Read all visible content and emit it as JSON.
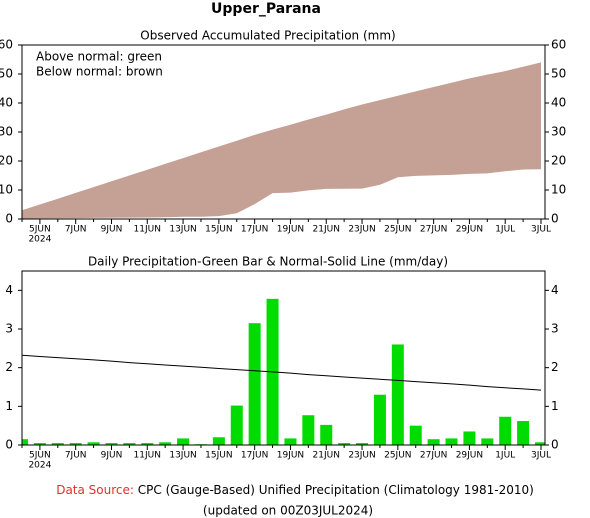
{
  "header": {
    "title": "Upper_Parana"
  },
  "chart_data": [
    {
      "type": "band",
      "title": "Observed Accumulated Precipitation (mm)",
      "annotations": [
        "Above normal: green",
        "Below normal: brown"
      ],
      "categories": [
        null,
        "5JUN",
        null,
        "7JUN",
        null,
        "9JUN",
        null,
        "11JUN",
        null,
        "13JUN",
        null,
        "15JUN",
        null,
        "17JUN",
        null,
        "19JUN",
        null,
        "21JUN",
        null,
        "23JUN",
        null,
        "25JUN",
        null,
        "27JUN",
        null,
        "29JUN",
        null,
        "1JUL",
        null,
        "3JUL"
      ],
      "year_label": "2024",
      "fill_color": "#c4a095",
      "series": [
        {
          "values": [
            3,
            5,
            7,
            9,
            11,
            13,
            15,
            17,
            19,
            21,
            23,
            25,
            27,
            29,
            30.8,
            32.5,
            34.3,
            36,
            37.8,
            39.5,
            41,
            42.5,
            44,
            45.5,
            47,
            48.5,
            49.8,
            51,
            52.5,
            54
          ]
        },
        {
          "values": [
            0.15,
            0.2,
            0.25,
            0.3,
            0.37,
            0.42,
            0.47,
            0.52,
            0.59,
            0.76,
            0.78,
            0.98,
            2.0,
            5.15,
            8.93,
            9.1,
            9.87,
            10.39,
            10.44,
            10.49,
            11.79,
            14.39,
            14.89,
            15.04,
            15.21,
            15.56,
            15.73,
            16.46,
            17.08,
            17.15
          ]
        }
      ],
      "ylim": [
        0,
        60
      ],
      "yticks": [
        0,
        10,
        20,
        30,
        40,
        50,
        60
      ]
    },
    {
      "type": "bar",
      "title": "Daily Precipitation-Green Bar & Normal-Solid Line (mm/day)",
      "categories": [
        null,
        "5JUN",
        null,
        "7JUN",
        null,
        "9JUN",
        null,
        "11JUN",
        null,
        "13JUN",
        null,
        "15JUN",
        null,
        "17JUN",
        null,
        "19JUN",
        null,
        "21JUN",
        null,
        "23JUN",
        null,
        "25JUN",
        null,
        "27JUN",
        null,
        "29JUN",
        null,
        "1JUL",
        null,
        "3JUL"
      ],
      "year_label": "2024",
      "series": [
        {
          "type": "bar",
          "color": "#00dc00",
          "values": [
            0.15,
            0.05,
            0.05,
            0.05,
            0.07,
            0.05,
            0.05,
            0.05,
            0.07,
            0.17,
            0.02,
            0.2,
            1.02,
            3.15,
            3.78,
            0.17,
            0.77,
            0.52,
            0.05,
            0.05,
            1.3,
            2.6,
            0.5,
            0.15,
            0.17,
            0.35,
            0.17,
            0.73,
            0.62,
            0.07
          ]
        },
        {
          "type": "line",
          "color": "#000000",
          "values": [
            2.32,
            2.29,
            2.26,
            2.23,
            2.2,
            2.17,
            2.13,
            2.1,
            2.07,
            2.04,
            2.01,
            1.98,
            1.95,
            1.92,
            1.89,
            1.86,
            1.82,
            1.79,
            1.76,
            1.73,
            1.7,
            1.67,
            1.64,
            1.61,
            1.58,
            1.55,
            1.51,
            1.48,
            1.45,
            1.42
          ]
        }
      ],
      "ylim": [
        0,
        4.5
      ],
      "yticks": [
        0,
        1,
        2,
        3,
        4
      ]
    }
  ],
  "footer": {
    "source_label": "Data Source:",
    "source": "CPC (Gauge-Based) Unified Precipitation (Climatology 1981-2010)",
    "updated": "(updated on 00Z03JUL2024)"
  }
}
